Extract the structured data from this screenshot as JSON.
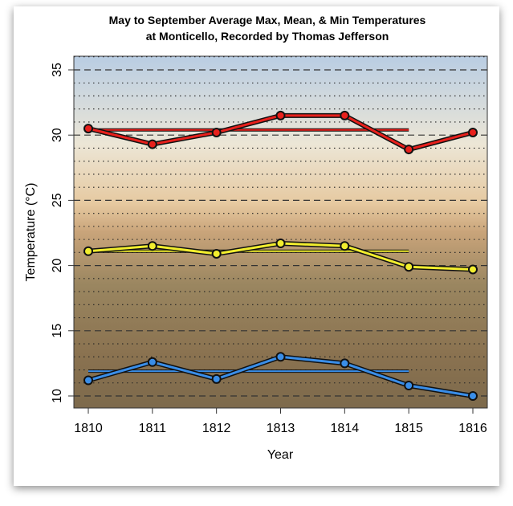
{
  "chart_data": {
    "type": "line",
    "title": "May to September Average Max, Mean, & Min Temperatures",
    "subtitle": "at Monticello, Recorded by Thomas Jefferson",
    "xlabel": "Year",
    "ylabel": "Temperature (°C)",
    "x": [
      1810,
      1811,
      1812,
      1813,
      1814,
      1815,
      1816
    ],
    "x_tick_labels": [
      "1810",
      "1811",
      "1812",
      "1813",
      "1814",
      "1815",
      "1816"
    ],
    "y_ticks": [
      10,
      15,
      20,
      25,
      30,
      35
    ],
    "y_tick_labels": [
      "10",
      "15",
      "20",
      "25",
      "30",
      "35"
    ],
    "ylim": [
      9.1,
      36.0
    ],
    "grid": "dashed every 5, dotted every 1",
    "series": [
      {
        "color": "#e8201c",
        "values": [
          30.5,
          29.3,
          30.2,
          31.5,
          31.5,
          28.9,
          30.2
        ],
        "mean_1810_1815": 30.4
      },
      {
        "color": "#f2ee2e",
        "values": [
          21.1,
          21.5,
          20.9,
          21.7,
          21.5,
          19.9,
          19.7
        ],
        "mean_1810_1815": 21.1
      },
      {
        "color": "#3a8ee8",
        "values": [
          11.2,
          12.6,
          11.3,
          13.0,
          12.5,
          10.8,
          10.0
        ],
        "mean_1810_1815": 11.9
      }
    ]
  }
}
